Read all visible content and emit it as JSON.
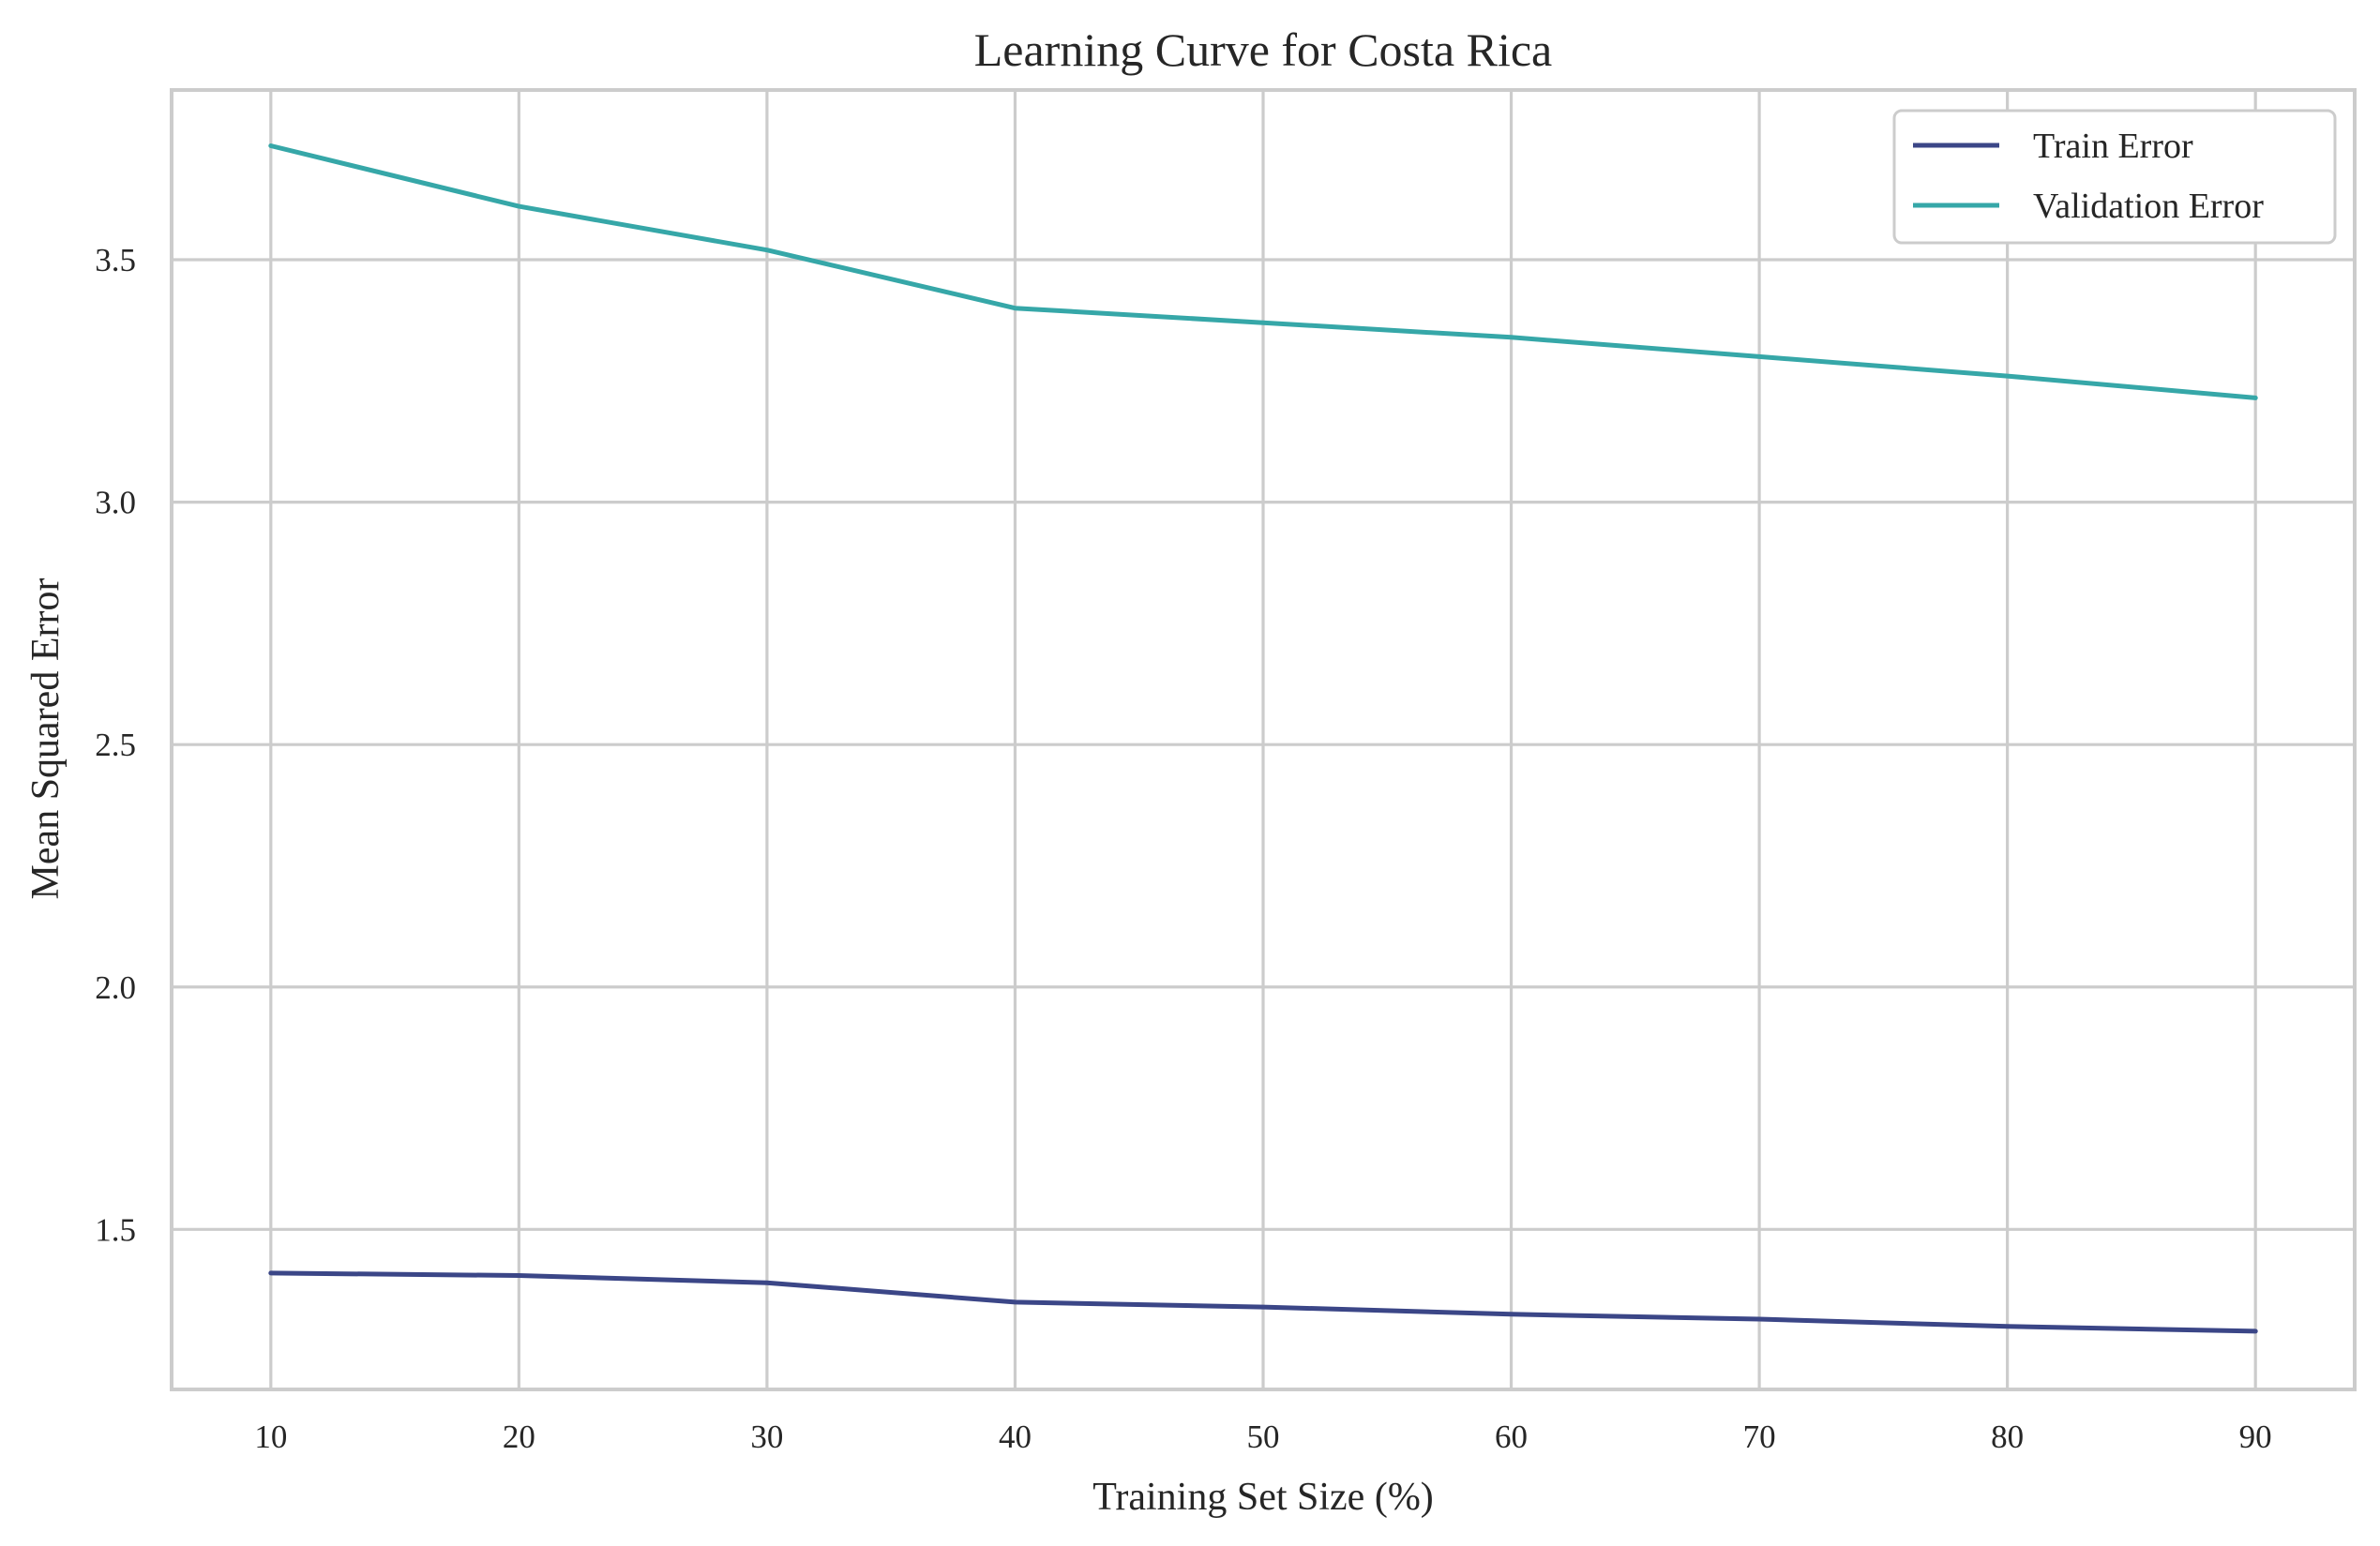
{
  "chart_data": {
    "type": "line",
    "title": "Learning Curve for Costa Rica",
    "xlabel": "Training Set Size (%)",
    "ylabel": "Mean Squared Error",
    "x": [
      10,
      20,
      30,
      40,
      50,
      60,
      70,
      80,
      90
    ],
    "xticks": [
      10,
      20,
      30,
      40,
      50,
      60,
      70,
      80,
      90
    ],
    "yticks": [
      "1.5",
      "2.0",
      "2.5",
      "3.0",
      "3.5"
    ],
    "xlim": [
      6,
      94
    ],
    "ylim": [
      1.17,
      3.85
    ],
    "grid": true,
    "legend_position": "top-right",
    "series": [
      {
        "name": "Train Error",
        "color": "#3b4687",
        "values": [
          1.41,
          1.405,
          1.39,
          1.35,
          1.34,
          1.325,
          1.315,
          1.3,
          1.29
        ]
      },
      {
        "name": "Validation Error",
        "color": "#36a7a8",
        "values": [
          3.735,
          3.61,
          3.52,
          3.4,
          3.37,
          3.34,
          3.3,
          3.26,
          3.215
        ]
      }
    ]
  }
}
